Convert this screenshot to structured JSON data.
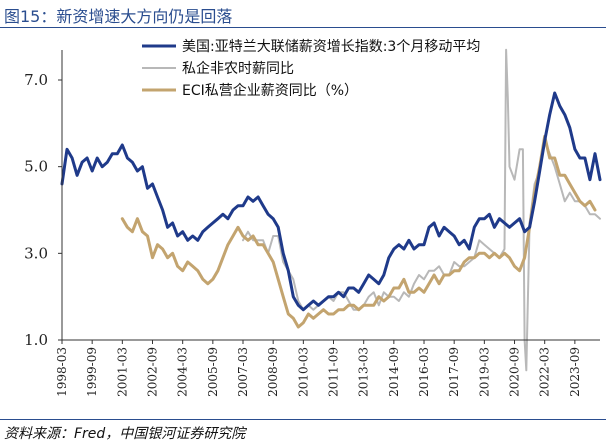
{
  "figure": {
    "title": "图15：新资增速大方向仍是回落",
    "source": "资料来源：Fred，中国银河证券研究院"
  },
  "chart_data": {
    "type": "line",
    "ylim": [
      1.0,
      7.0
    ],
    "yticks": [
      "1.0",
      "3.0",
      "5.0",
      "7.0"
    ],
    "yticks_values": [
      1.0,
      3.0,
      5.0,
      7.0
    ],
    "xlim": [
      "1998-03",
      "2024-12"
    ],
    "xticks": [
      "1998-03",
      "1999-09",
      "2001-03",
      "2002-09",
      "2004-03",
      "2005-09",
      "2007-03",
      "2008-09",
      "2010-03",
      "2011-09",
      "2013-03",
      "2014-09",
      "2016-03",
      "2017-09",
      "2019-03",
      "2020-09",
      "2022-03",
      "2023-09"
    ],
    "grid": false,
    "legend_position": "top",
    "series": [
      {
        "name": "美国:亚特兰大联储薪资增长指数:3个月移动平均",
        "color": "#1f3a8a",
        "line_width": 3,
        "points": [
          [
            "1998-03",
            4.6
          ],
          [
            "1998-06",
            5.4
          ],
          [
            "1998-09",
            5.2
          ],
          [
            "1998-12",
            4.8
          ],
          [
            "1999-03",
            5.1
          ],
          [
            "1999-06",
            5.2
          ],
          [
            "1999-09",
            4.9
          ],
          [
            "1999-12",
            5.2
          ],
          [
            "2000-03",
            5.0
          ],
          [
            "2000-06",
            5.1
          ],
          [
            "2000-09",
            5.3
          ],
          [
            "2000-12",
            5.3
          ],
          [
            "2001-03",
            5.5
          ],
          [
            "2001-06",
            5.2
          ],
          [
            "2001-09",
            5.1
          ],
          [
            "2001-12",
            4.9
          ],
          [
            "2002-03",
            5.0
          ],
          [
            "2002-06",
            4.5
          ],
          [
            "2002-09",
            4.6
          ],
          [
            "2002-12",
            4.3
          ],
          [
            "2003-03",
            4.0
          ],
          [
            "2003-06",
            3.6
          ],
          [
            "2003-09",
            3.7
          ],
          [
            "2003-12",
            3.4
          ],
          [
            "2004-03",
            3.5
          ],
          [
            "2004-06",
            3.3
          ],
          [
            "2004-09",
            3.4
          ],
          [
            "2004-12",
            3.3
          ],
          [
            "2005-03",
            3.5
          ],
          [
            "2005-06",
            3.6
          ],
          [
            "2005-09",
            3.7
          ],
          [
            "2005-12",
            3.8
          ],
          [
            "2006-03",
            3.9
          ],
          [
            "2006-06",
            3.8
          ],
          [
            "2006-09",
            4.0
          ],
          [
            "2006-12",
            4.1
          ],
          [
            "2007-03",
            4.1
          ],
          [
            "2007-06",
            4.3
          ],
          [
            "2007-09",
            4.2
          ],
          [
            "2007-12",
            4.3
          ],
          [
            "2008-03",
            4.1
          ],
          [
            "2008-06",
            3.9
          ],
          [
            "2008-09",
            3.8
          ],
          [
            "2008-12",
            3.6
          ],
          [
            "2009-03",
            3.0
          ],
          [
            "2009-06",
            2.6
          ],
          [
            "2009-09",
            2.0
          ],
          [
            "2009-12",
            1.8
          ],
          [
            "2010-03",
            1.7
          ],
          [
            "2010-06",
            1.8
          ],
          [
            "2010-09",
            1.9
          ],
          [
            "2010-12",
            1.8
          ],
          [
            "2011-03",
            1.9
          ],
          [
            "2011-06",
            2.0
          ],
          [
            "2011-09",
            2.0
          ],
          [
            "2011-12",
            2.1
          ],
          [
            "2012-03",
            2.0
          ],
          [
            "2012-06",
            2.2
          ],
          [
            "2012-09",
            2.2
          ],
          [
            "2012-12",
            2.1
          ],
          [
            "2013-03",
            2.3
          ],
          [
            "2013-06",
            2.5
          ],
          [
            "2013-09",
            2.4
          ],
          [
            "2013-12",
            2.3
          ],
          [
            "2014-03",
            2.5
          ],
          [
            "2014-06",
            2.9
          ],
          [
            "2014-09",
            3.1
          ],
          [
            "2014-12",
            3.2
          ],
          [
            "2015-03",
            3.1
          ],
          [
            "2015-06",
            3.3
          ],
          [
            "2015-09",
            3.1
          ],
          [
            "2015-12",
            3.2
          ],
          [
            "2016-03",
            3.2
          ],
          [
            "2016-06",
            3.6
          ],
          [
            "2016-09",
            3.7
          ],
          [
            "2016-12",
            3.4
          ],
          [
            "2017-03",
            3.6
          ],
          [
            "2017-06",
            3.5
          ],
          [
            "2017-09",
            3.4
          ],
          [
            "2017-12",
            3.2
          ],
          [
            "2018-03",
            3.3
          ],
          [
            "2018-06",
            3.1
          ],
          [
            "2018-09",
            3.6
          ],
          [
            "2018-12",
            3.8
          ],
          [
            "2019-03",
            3.8
          ],
          [
            "2019-06",
            3.9
          ],
          [
            "2019-09",
            3.6
          ],
          [
            "2019-12",
            3.8
          ],
          [
            "2020-03",
            3.7
          ],
          [
            "2020-06",
            3.6
          ],
          [
            "2020-09",
            3.7
          ],
          [
            "2020-12",
            3.8
          ],
          [
            "2021-03",
            3.5
          ],
          [
            "2021-06",
            3.6
          ],
          [
            "2021-09",
            4.2
          ],
          [
            "2021-12",
            4.9
          ],
          [
            "2022-03",
            5.6
          ],
          [
            "2022-06",
            6.2
          ],
          [
            "2022-09",
            6.7
          ],
          [
            "2022-12",
            6.4
          ],
          [
            "2023-03",
            6.2
          ],
          [
            "2023-06",
            5.9
          ],
          [
            "2023-09",
            5.4
          ],
          [
            "2023-12",
            5.2
          ],
          [
            "2024-03",
            5.2
          ],
          [
            "2024-06",
            4.7
          ],
          [
            "2024-09",
            5.3
          ],
          [
            "2024-12",
            4.7
          ]
        ]
      },
      {
        "name": "私企非农时薪同比",
        "color": "#b8b8b8",
        "line_width": 2,
        "points": [
          [
            "2007-03",
            3.3
          ],
          [
            "2007-06",
            3.5
          ],
          [
            "2007-09",
            3.3
          ],
          [
            "2007-12",
            3.3
          ],
          [
            "2008-03",
            3.3
          ],
          [
            "2008-06",
            3.0
          ],
          [
            "2008-09",
            3.4
          ],
          [
            "2008-12",
            3.4
          ],
          [
            "2009-03",
            2.8
          ],
          [
            "2009-06",
            2.6
          ],
          [
            "2009-09",
            2.4
          ],
          [
            "2009-12",
            1.9
          ],
          [
            "2010-03",
            1.7
          ],
          [
            "2010-06",
            1.8
          ],
          [
            "2010-09",
            1.7
          ],
          [
            "2010-12",
            1.8
          ],
          [
            "2011-03",
            1.9
          ],
          [
            "2011-06",
            2.0
          ],
          [
            "2011-09",
            1.9
          ],
          [
            "2011-12",
            2.1
          ],
          [
            "2012-03",
            2.1
          ],
          [
            "2012-06",
            1.9
          ],
          [
            "2012-09",
            1.7
          ],
          [
            "2012-12",
            1.7
          ],
          [
            "2013-03",
            1.8
          ],
          [
            "2013-06",
            2.0
          ],
          [
            "2013-09",
            2.1
          ],
          [
            "2013-12",
            1.8
          ],
          [
            "2014-03",
            2.1
          ],
          [
            "2014-06",
            2.0
          ],
          [
            "2014-09",
            2.0
          ],
          [
            "2014-12",
            1.9
          ],
          [
            "2015-03",
            2.1
          ],
          [
            "2015-06",
            2.0
          ],
          [
            "2015-09",
            2.3
          ],
          [
            "2015-12",
            2.5
          ],
          [
            "2016-03",
            2.4
          ],
          [
            "2016-06",
            2.6
          ],
          [
            "2016-09",
            2.6
          ],
          [
            "2016-12",
            2.7
          ],
          [
            "2017-03",
            2.5
          ],
          [
            "2017-06",
            2.5
          ],
          [
            "2017-09",
            2.8
          ],
          [
            "2017-12",
            2.7
          ],
          [
            "2018-03",
            2.7
          ],
          [
            "2018-06",
            2.8
          ],
          [
            "2018-09",
            2.9
          ],
          [
            "2018-12",
            3.3
          ],
          [
            "2019-03",
            3.2
          ],
          [
            "2019-06",
            3.1
          ],
          [
            "2019-09",
            3.0
          ],
          [
            "2019-12",
            2.9
          ],
          [
            "2020-03",
            3.1
          ],
          [
            "2020-04",
            7.7
          ],
          [
            "2020-05",
            6.6
          ],
          [
            "2020-06",
            5.0
          ],
          [
            "2020-09",
            4.7
          ],
          [
            "2020-12",
            5.4
          ],
          [
            "2021-02",
            5.4
          ],
          [
            "2021-03",
            1.0
          ],
          [
            "2021-04",
            0.3
          ],
          [
            "2021-06",
            3.7
          ],
          [
            "2021-09",
            4.6
          ],
          [
            "2021-12",
            4.9
          ],
          [
            "2022-03",
            5.6
          ],
          [
            "2022-06",
            5.3
          ],
          [
            "2022-09",
            5.0
          ],
          [
            "2022-12",
            4.6
          ],
          [
            "2023-03",
            4.2
          ],
          [
            "2023-06",
            4.4
          ],
          [
            "2023-09",
            4.2
          ],
          [
            "2023-12",
            4.2
          ],
          [
            "2024-03",
            4.1
          ],
          [
            "2024-06",
            3.9
          ],
          [
            "2024-09",
            3.9
          ],
          [
            "2024-12",
            3.8
          ]
        ]
      },
      {
        "name": "ECI私营企业薪资同比（%）",
        "color": "#c3a46f",
        "line_width": 3,
        "points": [
          [
            "2001-03",
            3.8
          ],
          [
            "2001-06",
            3.6
          ],
          [
            "2001-09",
            3.5
          ],
          [
            "2001-12",
            3.8
          ],
          [
            "2002-03",
            3.5
          ],
          [
            "2002-06",
            3.4
          ],
          [
            "2002-09",
            2.9
          ],
          [
            "2002-12",
            3.2
          ],
          [
            "2003-03",
            3.1
          ],
          [
            "2003-06",
            2.9
          ],
          [
            "2003-09",
            3.0
          ],
          [
            "2003-12",
            2.7
          ],
          [
            "2004-03",
            2.6
          ],
          [
            "2004-06",
            2.8
          ],
          [
            "2004-09",
            2.7
          ],
          [
            "2004-12",
            2.6
          ],
          [
            "2005-03",
            2.4
          ],
          [
            "2005-06",
            2.3
          ],
          [
            "2005-09",
            2.4
          ],
          [
            "2005-12",
            2.6
          ],
          [
            "2006-03",
            2.9
          ],
          [
            "2006-06",
            3.2
          ],
          [
            "2006-09",
            3.4
          ],
          [
            "2006-12",
            3.6
          ],
          [
            "2007-03",
            3.4
          ],
          [
            "2007-06",
            3.3
          ],
          [
            "2007-09",
            3.4
          ],
          [
            "2007-12",
            3.2
          ],
          [
            "2008-03",
            3.2
          ],
          [
            "2008-06",
            3.0
          ],
          [
            "2008-09",
            2.8
          ],
          [
            "2008-12",
            2.4
          ],
          [
            "2009-03",
            2.0
          ],
          [
            "2009-06",
            1.6
          ],
          [
            "2009-09",
            1.5
          ],
          [
            "2009-12",
            1.3
          ],
          [
            "2010-03",
            1.4
          ],
          [
            "2010-06",
            1.6
          ],
          [
            "2010-09",
            1.5
          ],
          [
            "2010-12",
            1.6
          ],
          [
            "2011-03",
            1.7
          ],
          [
            "2011-06",
            1.6
          ],
          [
            "2011-09",
            1.6
          ],
          [
            "2011-12",
            1.7
          ],
          [
            "2012-03",
            1.7
          ],
          [
            "2012-06",
            1.8
          ],
          [
            "2012-09",
            1.8
          ],
          [
            "2012-12",
            1.7
          ],
          [
            "2013-03",
            1.8
          ],
          [
            "2013-06",
            1.8
          ],
          [
            "2013-09",
            1.8
          ],
          [
            "2013-12",
            2.0
          ],
          [
            "2014-03",
            1.9
          ],
          [
            "2014-06",
            2.0
          ],
          [
            "2014-09",
            2.2
          ],
          [
            "2014-12",
            2.2
          ],
          [
            "2015-03",
            2.4
          ],
          [
            "2015-06",
            2.1
          ],
          [
            "2015-09",
            2.1
          ],
          [
            "2015-12",
            2.2
          ],
          [
            "2016-03",
            2.1
          ],
          [
            "2016-06",
            2.3
          ],
          [
            "2016-09",
            2.5
          ],
          [
            "2016-12",
            2.3
          ],
          [
            "2017-03",
            2.5
          ],
          [
            "2017-06",
            2.5
          ],
          [
            "2017-09",
            2.6
          ],
          [
            "2017-12",
            2.6
          ],
          [
            "2018-03",
            2.8
          ],
          [
            "2018-06",
            2.9
          ],
          [
            "2018-09",
            2.9
          ],
          [
            "2018-12",
            3.0
          ],
          [
            "2019-03",
            3.0
          ],
          [
            "2019-06",
            2.9
          ],
          [
            "2019-09",
            3.0
          ],
          [
            "2019-12",
            2.9
          ],
          [
            "2020-03",
            3.0
          ],
          [
            "2020-06",
            2.9
          ],
          [
            "2020-09",
            2.7
          ],
          [
            "2020-12",
            2.6
          ],
          [
            "2021-03",
            2.9
          ],
          [
            "2021-06",
            3.6
          ],
          [
            "2021-09",
            4.4
          ],
          [
            "2021-12",
            5.0
          ],
          [
            "2022-03",
            5.7
          ],
          [
            "2022-06",
            5.2
          ],
          [
            "2022-09",
            5.2
          ],
          [
            "2022-12",
            4.8
          ],
          [
            "2023-03",
            4.8
          ],
          [
            "2023-06",
            4.6
          ],
          [
            "2023-09",
            4.4
          ],
          [
            "2023-12",
            4.2
          ],
          [
            "2024-03",
            4.1
          ],
          [
            "2024-06",
            4.2
          ],
          [
            "2024-09",
            4.0
          ]
        ]
      }
    ]
  }
}
